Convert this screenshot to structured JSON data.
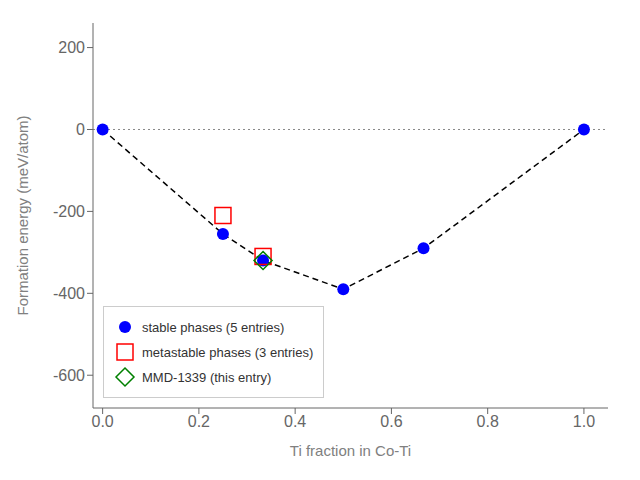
{
  "chart_data": {
    "type": "scatter",
    "xlabel": "Ti fraction in Co-Ti",
    "ylabel": "Formation energy (meV/atom)",
    "xlim": [
      -0.02,
      1.05
    ],
    "ylim": [
      -680,
      260
    ],
    "xticks": [
      {
        "value": 0.0,
        "label": "0.0"
      },
      0.2,
      0.4,
      0.6,
      0.8,
      {
        "value": 1.0,
        "label": "1.0"
      }
    ],
    "yticks": [
      -600,
      -400,
      -200,
      0,
      200
    ],
    "legend": "lower left",
    "grid": false,
    "hlines": [
      {
        "y": 0,
        "color": "#888888",
        "line_style": "dotted"
      }
    ],
    "series": [
      {
        "type": "line",
        "color": "#000000",
        "line_style": "dashed",
        "x": [
          0.0,
          0.25,
          0.3333,
          0.5,
          0.6667,
          1.0
        ],
        "values": [
          0.0,
          -255.0,
          -320.0,
          -390.0,
          -290.0,
          0.0
        ]
      },
      {
        "type": "scatter",
        "name": "stable phases (5 entries)",
        "color": "#0000ff",
        "marker": "circle",
        "x": [
          0.0,
          0.25,
          0.3333,
          0.5,
          0.6667,
          1.0
        ],
        "values": [
          0.0,
          -255.0,
          -320.0,
          -390.0,
          -290.0,
          0.0
        ]
      },
      {
        "type": "scatter",
        "name": "metastable phases (3 entries)",
        "color": "#ff0000",
        "marker": "open_square",
        "x": [
          0.25,
          0.3333
        ],
        "values": [
          -210.0,
          -310.0
        ]
      },
      {
        "type": "scatter",
        "name": "MMD-1339 (this entry)",
        "color": "#008000",
        "marker": "open_diamond",
        "x": [
          0.3333
        ],
        "values": [
          -320.0
        ]
      }
    ]
  }
}
